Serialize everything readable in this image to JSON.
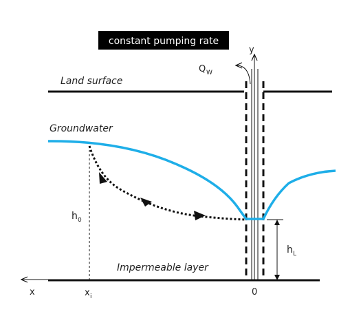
{
  "title": "constant pumping rate",
  "labels": {
    "land_surface": "Land surface",
    "groundwater": "Groundwater",
    "impermeable_layer": "Impermeable layer",
    "discharge_main": "Q",
    "discharge_sub": "W",
    "y_axis": "y",
    "x_axis": "x",
    "origin": "0",
    "h0_main": "h",
    "h0_sub": "0",
    "hL_main": "h",
    "hL_sub": "L",
    "xi_main": "x",
    "xi_sub": "i"
  },
  "colors": {
    "water_table": "#1eaee8",
    "lines": "#111111",
    "flow_path": "#111111"
  }
}
